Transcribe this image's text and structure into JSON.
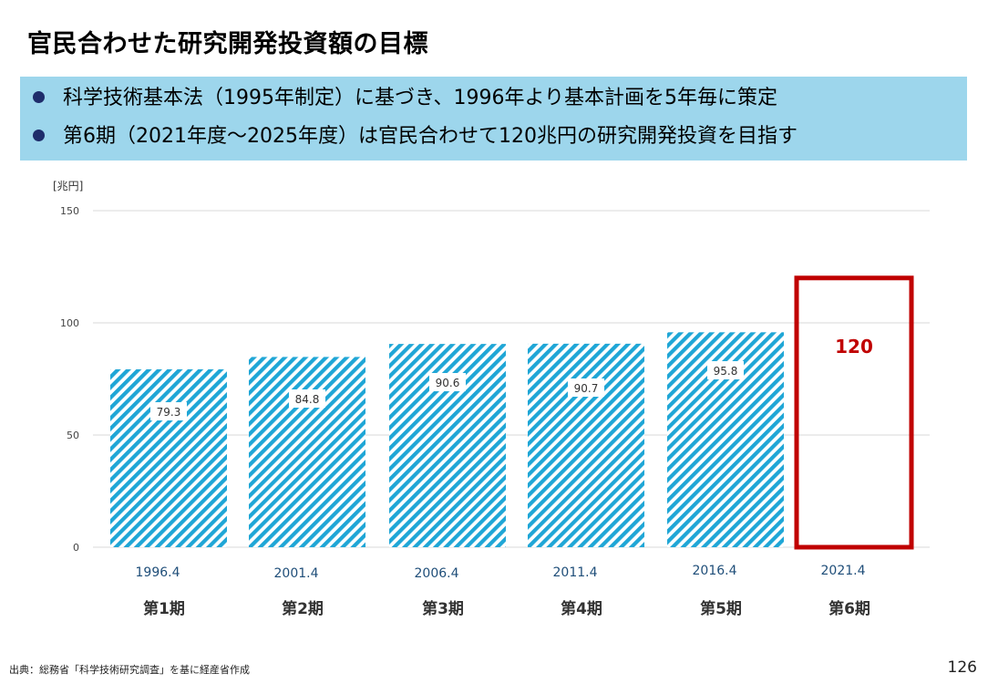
{
  "title": "官民合わせた研究開発投資額の目標",
  "bullets": [
    "科学技術基本法（1995年制定）に基づき、1996年より基本計画を5年毎に策定",
    "第6期（2021年度～2025年度）は官民合わせて120兆円の研究開発投資を目指す"
  ],
  "colors": {
    "banner": "#9dd6ec",
    "bar_stripe": "#1fa6d6",
    "target_border": "#c00000",
    "period_label": "#1f4e79",
    "bullet_dot": "#1f2d6b"
  },
  "chart_data": {
    "type": "bar",
    "ylabel": "[兆円]",
    "ylim": [
      0,
      150
    ],
    "yticks": [
      0,
      50,
      100,
      150
    ],
    "grid": true,
    "categories": [
      "第1期",
      "第2期",
      "第3期",
      "第4期",
      "第5期",
      "第6期"
    ],
    "start_labels": [
      "1996.4",
      "2001.4",
      "2006.4",
      "2011.4",
      "2016.4",
      "2021.4"
    ],
    "values": [
      79.3,
      84.8,
      90.6,
      90.7,
      95.8,
      120
    ],
    "value_labels": [
      "79.3",
      "84.8",
      "90.6",
      "90.7",
      "95.8",
      "120"
    ],
    "target_index": 5
  },
  "footer": {
    "source": "出典：総務省「科学技術研究調査」を基に経産省作成",
    "page_number": "126"
  }
}
